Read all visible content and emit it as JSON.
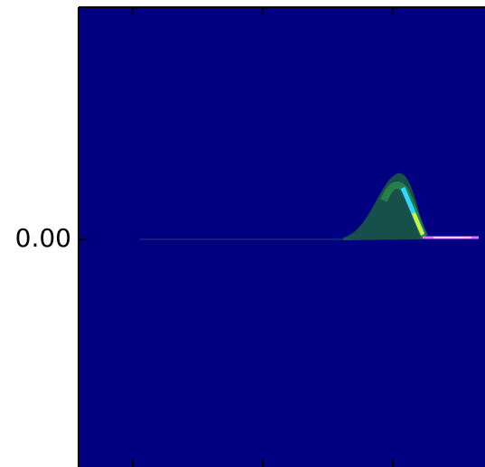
{
  "chart_data": {
    "type": "heatmap",
    "ylim": [
      -1,
      1
    ],
    "yticks": [
      {
        "value": 0,
        "label": "0.00"
      }
    ],
    "background": "#000080"
  }
}
